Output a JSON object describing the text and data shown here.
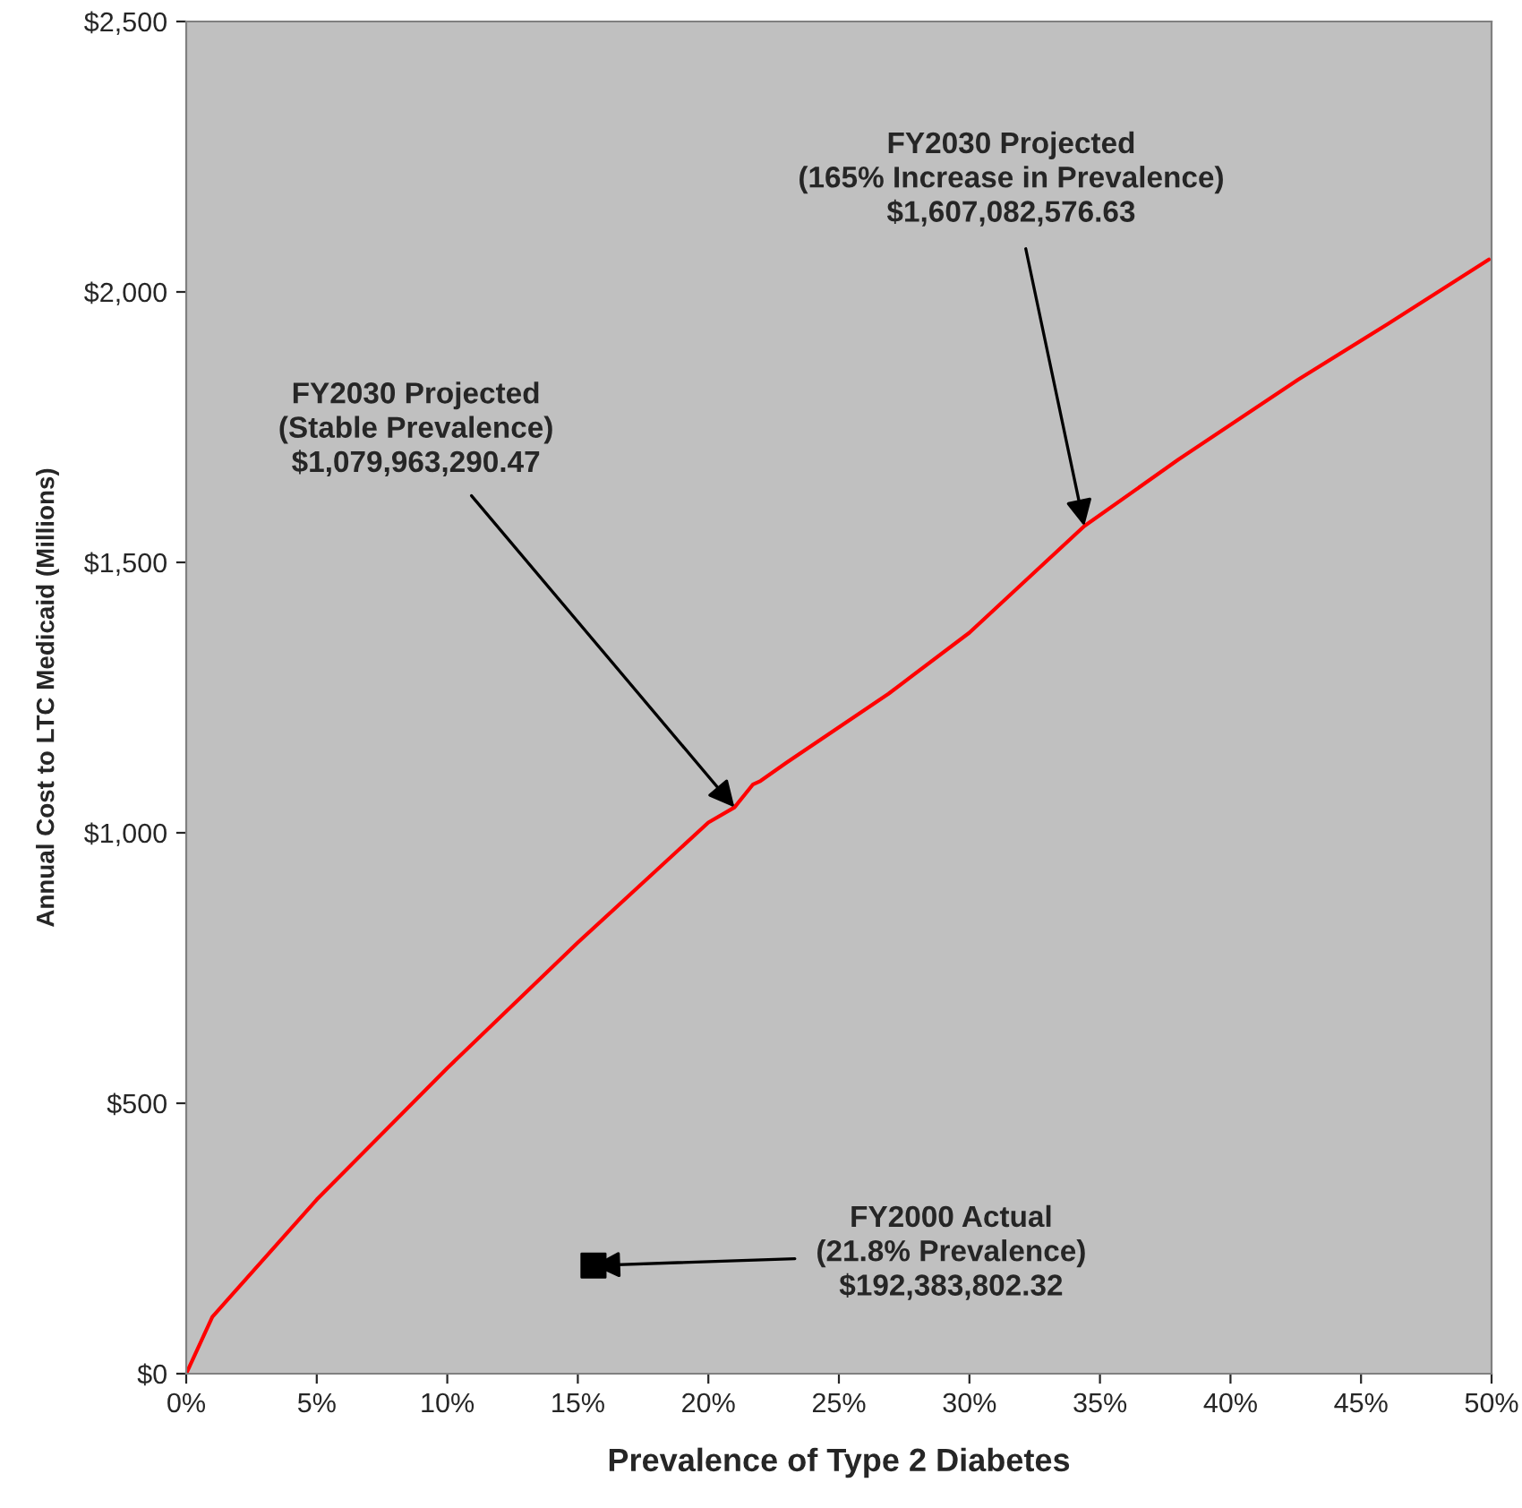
{
  "chart_data": {
    "type": "line",
    "xlabel": "Prevalence of Type 2 Diabetes",
    "ylabel": "Annual Cost to LTC Medicaid (Millions)",
    "xlim": [
      0,
      50
    ],
    "ylim": [
      0,
      2500
    ],
    "xticks": [
      {
        "value": 0,
        "label": "0%"
      },
      {
        "value": 5,
        "label": "5%"
      },
      {
        "value": 10,
        "label": "10%"
      },
      {
        "value": 15,
        "label": "15%"
      },
      {
        "value": 20,
        "label": "20%"
      },
      {
        "value": 25,
        "label": "25%"
      },
      {
        "value": 30,
        "label": "30%"
      },
      {
        "value": 35,
        "label": "35%"
      },
      {
        "value": 40,
        "label": "40%"
      },
      {
        "value": 45,
        "label": "45%"
      },
      {
        "value": 50,
        "label": "50%"
      }
    ],
    "yticks": [
      {
        "value": 0,
        "label": "$0"
      },
      {
        "value": 500,
        "label": "$500"
      },
      {
        "value": 1000,
        "label": "$1,000"
      },
      {
        "value": 1500,
        "label": "$1,500"
      },
      {
        "value": 2000,
        "label": "$2,000"
      },
      {
        "value": 2500,
        "label": "$2,500"
      }
    ],
    "grid": false,
    "legend": false,
    "series": [
      {
        "color": "#ff0000",
        "marker": "none",
        "line_style": "solid",
        "x": [
          0,
          1.0,
          5,
          10,
          15,
          20,
          21.0,
          21.7,
          22.0,
          23.0,
          26.9,
          30,
          34.4,
          38,
          42.6,
          46,
          49.9
        ],
        "values": [
          0,
          105,
          322,
          565,
          797,
          1019,
          1047,
          1089,
          1096,
          1130,
          1257,
          1370,
          1567,
          1690,
          1838,
          1940,
          2060
        ]
      },
      {
        "type": "scatter",
        "color": "#000000",
        "marker": "square",
        "x": [
          15.6
        ],
        "values": [
          200
        ]
      }
    ],
    "annotations": [
      {
        "text": "FY2030 Projected\n(Stable Prevalence)\n$1,079,963,290.47",
        "x": 21.0,
        "y": 1047
      },
      {
        "text": "FY2030 Projected\n(165% Increase in Prevalence)\n$1,607,082,576.63",
        "x": 34.4,
        "y": 1567
      },
      {
        "text": "FY2000 Actual\n(21.8% Prevalence)\n$192,383,802.32",
        "x": 15.6,
        "y": 200
      }
    ]
  }
}
